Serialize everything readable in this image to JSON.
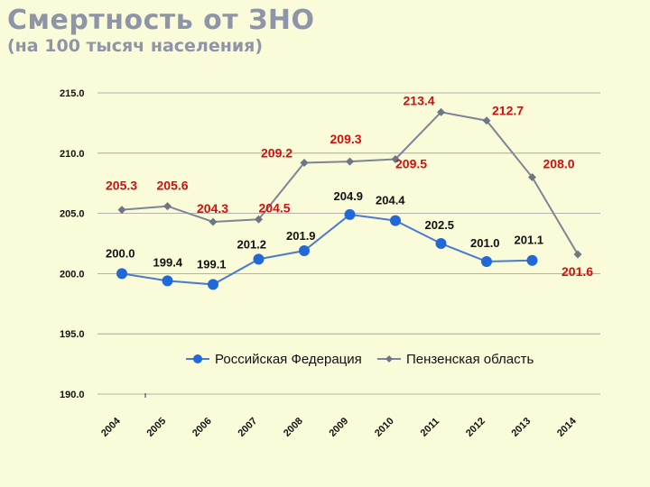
{
  "title": "Смертность от ЗНО",
  "subtitle": "(на 100 тысяч населения)",
  "colors": {
    "background": "#fafbd9",
    "rf_line": "#4a7bd0",
    "rf_marker": "#2069d6",
    "pz_line": "#7e8597",
    "pz_marker": "#6e7585",
    "pz_label": "#d01010",
    "rf_label": "#111111"
  },
  "chart_data": {
    "type": "line",
    "categories": [
      "2004",
      "2005",
      "2006",
      "2007",
      "2008",
      "2009",
      "2010",
      "2011",
      "2012",
      "2013",
      "2014"
    ],
    "ylim": [
      190,
      215
    ],
    "yticks": [
      "190.0",
      "195.0",
      "200.0",
      "205.0",
      "210.0",
      "215.0"
    ],
    "series": [
      {
        "name": "Российская Федерация",
        "values": [
          200.0,
          199.4,
          199.1,
          201.2,
          201.9,
          204.9,
          204.4,
          202.5,
          201.0,
          201.1,
          null
        ],
        "labels": [
          "200.0",
          "199.4",
          "199.1",
          "201.2",
          "201.9",
          "204.9",
          "204.4",
          "202.5",
          "201.0",
          "201.1",
          ""
        ]
      },
      {
        "name": "Пензенская область",
        "values": [
          205.3,
          205.6,
          204.3,
          204.5,
          209.2,
          209.3,
          209.5,
          213.4,
          212.7,
          208.0,
          201.6
        ],
        "labels": [
          "205.3",
          "205.6",
          "204.3",
          "204.5",
          "209.2",
          "209.3",
          "209.5",
          "213.4",
          "212.7",
          "208.0",
          "201.6"
        ]
      }
    ],
    "legend_position": "bottom-center",
    "grid": true
  }
}
